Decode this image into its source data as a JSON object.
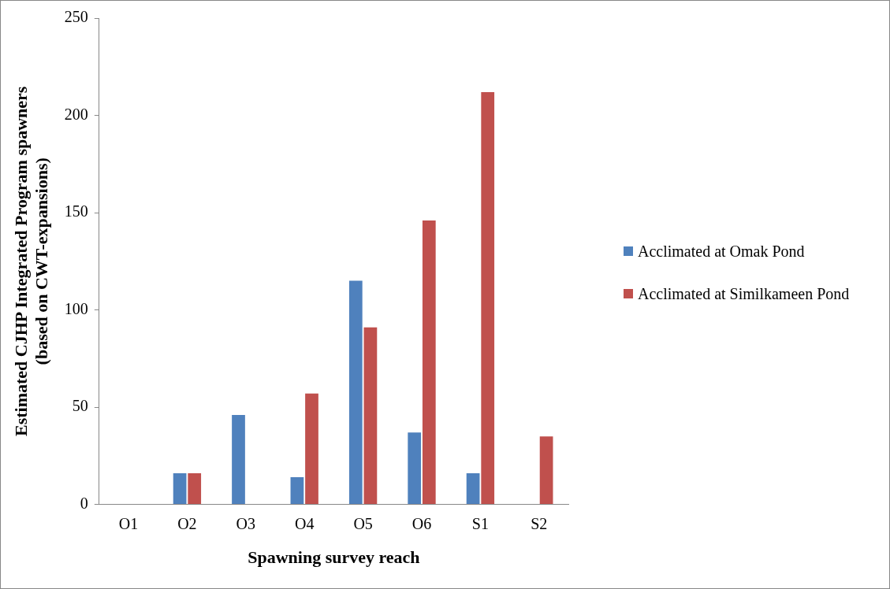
{
  "chart_data": {
    "type": "bar",
    "xlabel": "Spawning survey reach",
    "ylabel": "Estimated CJHP Integrated Program spawners (based on CWT-expansions)",
    "categories": [
      "O1",
      "O2",
      "O3",
      "O4",
      "O5",
      "O6",
      "S1",
      "S2"
    ],
    "series": [
      {
        "name": "Acclimated at Omak Pond",
        "color": "#4f81bd",
        "values": [
          0,
          16,
          46,
          14,
          115,
          37,
          16,
          0
        ]
      },
      {
        "name": "Acclimated at Similkameen Pond",
        "color": "#c0504d",
        "values": [
          0,
          16,
          0,
          57,
          91,
          146,
          212,
          35
        ]
      }
    ],
    "ylim": [
      0,
      250
    ],
    "yticks": [
      0,
      50,
      100,
      150,
      200,
      250
    ],
    "grid": false,
    "legend": "right"
  }
}
